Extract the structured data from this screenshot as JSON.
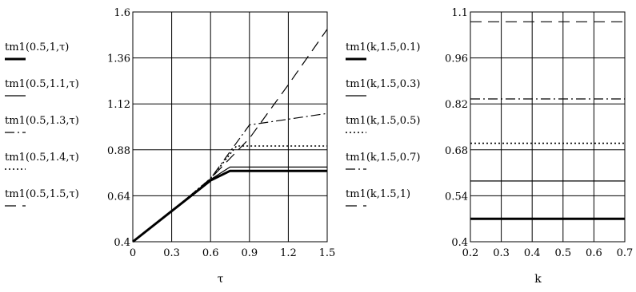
{
  "chart_data": [
    {
      "type": "line",
      "title": "",
      "xlabel": "τ",
      "ylabel": "",
      "xlim": [
        0,
        1.5
      ],
      "ylim": [
        0.4,
        1.6
      ],
      "xticks": [
        "0",
        "0.3",
        "0.6",
        "0.9",
        "1.2",
        "1.5"
      ],
      "yticks": [
        "0.4",
        "0.64",
        "0.88",
        "1.12",
        "1.36",
        "1.6"
      ],
      "grid": true,
      "legend": "left",
      "series": [
        {
          "name": "tm1(0.5,1,τ)",
          "style": "thick-solid",
          "x": [
            0,
            0.3,
            0.6,
            0.75,
            1.5
          ],
          "y": [
            0.4,
            0.56,
            0.72,
            0.77,
            0.77
          ]
        },
        {
          "name": "tm1(0.5,1.1,τ)",
          "style": "solid",
          "x": [
            0,
            0.3,
            0.6,
            0.75,
            1.5
          ],
          "y": [
            0.4,
            0.56,
            0.725,
            0.79,
            0.79
          ]
        },
        {
          "name": "tm1(0.5,1.3,τ)",
          "style": "dash-dot",
          "x": [
            0,
            0.3,
            0.6,
            0.9,
            1.5
          ],
          "y": [
            0.4,
            0.56,
            0.73,
            1.01,
            1.07
          ]
        },
        {
          "name": "tm1(0.5,1.4,τ)",
          "style": "dotted",
          "x": [
            0,
            0.3,
            0.6,
            0.8,
            1.5
          ],
          "y": [
            0.4,
            0.56,
            0.73,
            0.9,
            0.9
          ]
        },
        {
          "name": "tm1(0.5,1.5,τ)",
          "style": "dashed",
          "x": [
            0,
            0.3,
            0.6,
            0.9,
            1.2,
            1.5
          ],
          "y": [
            0.4,
            0.56,
            0.73,
            0.94,
            1.22,
            1.51
          ]
        }
      ]
    },
    {
      "type": "line",
      "title": "",
      "xlabel": "k",
      "ylabel": "",
      "xlim": [
        0.2,
        0.7
      ],
      "ylim": [
        0.4,
        1.1
      ],
      "xticks": [
        "0.2",
        "0.3",
        "0.4",
        "0.5",
        "0.6",
        "0.7"
      ],
      "yticks": [
        "0.4",
        "0.54",
        "0.68",
        "0.82",
        "0.96",
        "1.1"
      ],
      "grid": true,
      "legend": "left",
      "series": [
        {
          "name": "tm1(k,1.5,0.1)",
          "style": "thick-solid",
          "x": [
            0.2,
            0.7
          ],
          "y": [
            0.47,
            0.47
          ]
        },
        {
          "name": "tm1(k,1.5,0.3)",
          "style": "solid",
          "x": [
            0.2,
            0.7
          ],
          "y": [
            0.585,
            0.585
          ]
        },
        {
          "name": "tm1(k,1.5,0.5)",
          "style": "dotted",
          "x": [
            0.2,
            0.7
          ],
          "y": [
            0.7,
            0.7
          ]
        },
        {
          "name": "tm1(k,1.5,0.7)",
          "style": "dash-dot",
          "x": [
            0.2,
            0.7
          ],
          "y": [
            0.835,
            0.835
          ]
        },
        {
          "name": "tm1(k,1.5,1)",
          "style": "dashed",
          "x": [
            0.2,
            0.7
          ],
          "y": [
            1.07,
            1.07
          ]
        }
      ]
    }
  ]
}
